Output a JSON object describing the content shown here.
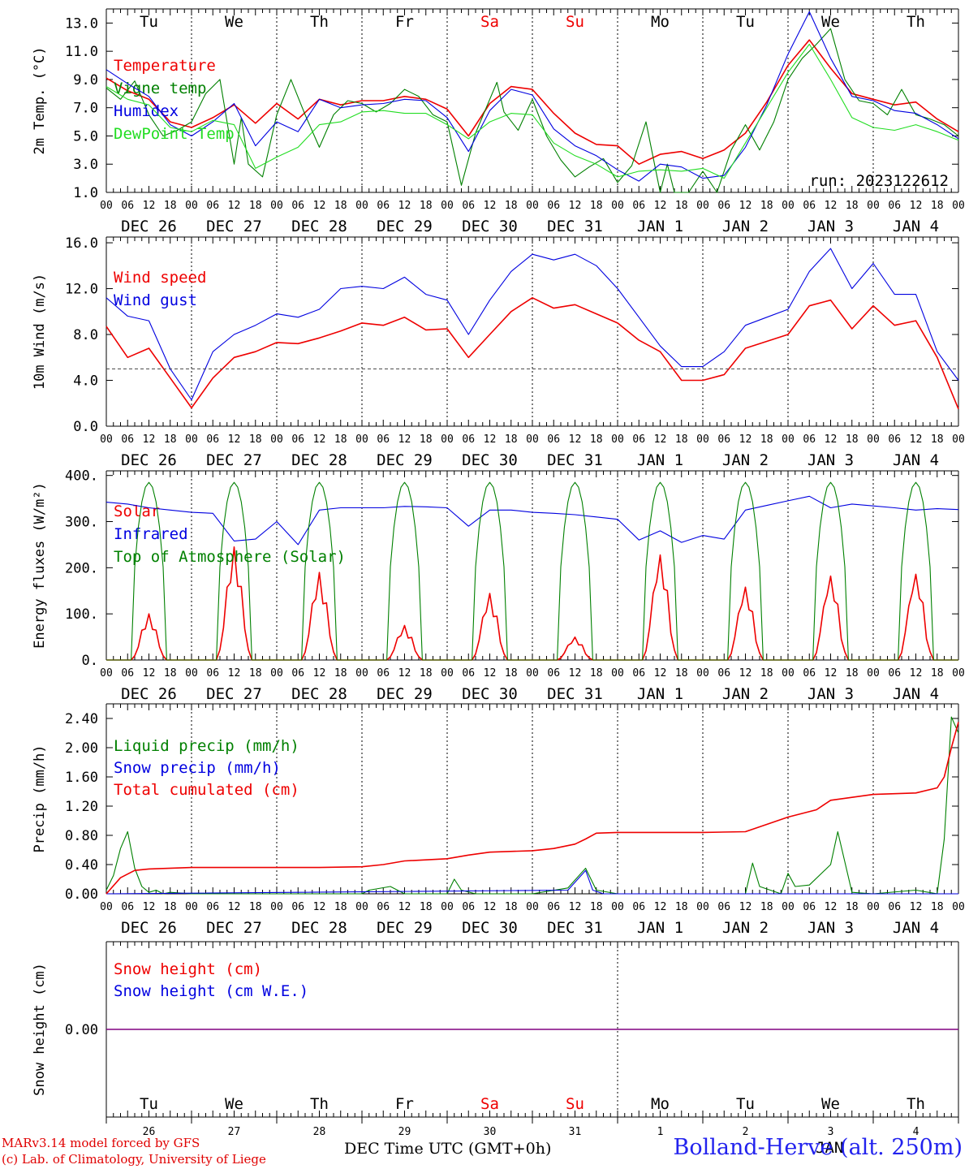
{
  "meta": {
    "run": "run: 2023122612",
    "station": "Bolland-Herve (alt. 250m)",
    "model_credit": "MARv3.14 model forced by GFS",
    "lab_credit": "(c) Lab. of Climatology, University of Liege",
    "time_axis_label": "DEC Time UTC (GMT+0h)",
    "jan_label": "JAN"
  },
  "colors": {
    "red": "#ee0000",
    "blue": "#0000e0",
    "green": "#008000",
    "lightgreen": "#22dd22",
    "purple": "#800080"
  },
  "days": {
    "names": [
      "Tu",
      "We",
      "Th",
      "Fr",
      "Sa",
      "Su",
      "Mo",
      "Tu",
      "We",
      "Th"
    ],
    "weekend": [
      false,
      false,
      false,
      false,
      true,
      true,
      false,
      false,
      false,
      false
    ],
    "dates": [
      "DEC 26",
      "DEC 27",
      "DEC 28",
      "DEC 29",
      "DEC 30",
      "DEC 31",
      "JAN  1",
      "JAN  2",
      "JAN  3",
      "JAN  4"
    ],
    "numbers": [
      "26",
      "27",
      "28",
      "29",
      "30",
      "31",
      "1",
      "2",
      "3",
      "4"
    ],
    "hour_ticks": [
      "00",
      "06",
      "12",
      "18"
    ],
    "last_tick": "00"
  },
  "chart_data": [
    {
      "type": "line",
      "ylabel": "2m Temp. (°C)",
      "ylim": [
        1.0,
        14.0
      ],
      "yticks": [
        "1.0",
        "3.0",
        "5.0",
        "7.0",
        "9.0",
        "11.0",
        "13.0"
      ],
      "x_unit": "hours since DEC 26 00 UTC",
      "series": [
        {
          "name": "Temperature",
          "color": "#ee0000",
          "x": [
            0,
            6,
            12,
            18,
            24,
            30,
            36,
            42,
            48,
            54,
            60,
            66,
            72,
            78,
            84,
            90,
            96,
            102,
            108,
            114,
            120,
            126,
            132,
            138,
            144,
            150,
            156,
            162,
            168,
            174,
            180,
            186,
            192,
            198,
            204,
            210,
            216,
            222,
            228,
            234,
            240
          ],
          "y": [
            9.1,
            8.2,
            7.6,
            6.0,
            5.6,
            6.3,
            7.2,
            5.9,
            7.3,
            6.2,
            7.6,
            7.2,
            7.5,
            7.5,
            7.8,
            7.6,
            6.9,
            5.0,
            7.3,
            8.5,
            8.3,
            6.6,
            5.2,
            4.4,
            4.3,
            3.0,
            3.7,
            3.9,
            3.4,
            4.0,
            5.2,
            7.4,
            10.0,
            11.8,
            9.8,
            8.0,
            7.6,
            7.2,
            7.4,
            6.2,
            5.3
          ]
        },
        {
          "name": "Vigne temp",
          "color": "#008000",
          "x": [
            0,
            4,
            8,
            12,
            16,
            20,
            24,
            28,
            32,
            36,
            38,
            40,
            44,
            48,
            52,
            56,
            60,
            64,
            68,
            72,
            76,
            80,
            84,
            88,
            92,
            96,
            100,
            104,
            108,
            110,
            112,
            116,
            120,
            124,
            128,
            132,
            136,
            140,
            144,
            148,
            152,
            156,
            158,
            160,
            164,
            168,
            172,
            176,
            180,
            184,
            188,
            192,
            196,
            200,
            204,
            208,
            212,
            216,
            220,
            224,
            228,
            232,
            236,
            240
          ],
          "y": [
            8.4,
            7.6,
            8.9,
            6.5,
            5.0,
            5.4,
            6.0,
            8.0,
            9.0,
            3.0,
            6.3,
            3.0,
            2.1,
            6.5,
            9.0,
            6.5,
            4.2,
            6.5,
            7.5,
            7.3,
            6.7,
            7.3,
            8.3,
            7.8,
            6.5,
            6.0,
            1.5,
            5.2,
            7.6,
            8.8,
            6.7,
            5.4,
            7.6,
            5.0,
            3.3,
            2.1,
            2.8,
            3.4,
            1.7,
            2.9,
            6.0,
            1.0,
            3.0,
            1.0,
            1.0,
            2.5,
            1.0,
            4.0,
            5.8,
            4.0,
            6.0,
            9.0,
            10.5,
            11.5,
            12.6,
            9.0,
            7.5,
            7.3,
            6.5,
            8.3,
            6.5,
            6.2,
            5.8,
            5.0
          ]
        },
        {
          "name": "Humidex",
          "color": "#0000e0",
          "x": [
            0,
            6,
            12,
            18,
            24,
            30,
            36,
            42,
            48,
            54,
            60,
            66,
            72,
            78,
            84,
            90,
            96,
            102,
            108,
            114,
            120,
            126,
            132,
            138,
            144,
            150,
            156,
            162,
            168,
            174,
            180,
            186,
            192,
            198,
            204,
            210,
            216,
            222,
            228,
            234,
            240
          ],
          "y": [
            9.7,
            8.7,
            7.8,
            5.8,
            5.0,
            6.0,
            7.3,
            4.3,
            6.0,
            5.3,
            7.6,
            7.0,
            7.2,
            7.3,
            7.6,
            7.5,
            6.3,
            3.9,
            6.8,
            8.3,
            7.9,
            5.5,
            4.3,
            3.6,
            2.6,
            1.8,
            3.0,
            2.8,
            2.0,
            2.2,
            4.2,
            7.2,
            10.8,
            13.8,
            10.5,
            7.8,
            7.5,
            6.8,
            6.6,
            5.8,
            4.8
          ]
        },
        {
          "name": "DewPoint Temp",
          "color": "#22dd22",
          "x": [
            0,
            6,
            12,
            18,
            24,
            30,
            36,
            42,
            48,
            54,
            60,
            66,
            72,
            78,
            84,
            90,
            96,
            102,
            108,
            114,
            120,
            126,
            132,
            138,
            144,
            150,
            156,
            162,
            168,
            174,
            180,
            186,
            192,
            198,
            204,
            210,
            216,
            222,
            228,
            234,
            240
          ],
          "y": [
            8.5,
            7.6,
            7.2,
            5.6,
            5.3,
            6.1,
            5.8,
            2.7,
            3.5,
            4.2,
            5.8,
            6.0,
            6.7,
            6.8,
            6.6,
            6.6,
            5.8,
            4.8,
            6.0,
            6.6,
            6.5,
            4.5,
            3.6,
            3.0,
            2.1,
            2.5,
            2.6,
            2.5,
            2.7,
            2.0,
            4.5,
            7.0,
            9.5,
            11.5,
            9.0,
            6.3,
            5.6,
            5.4,
            5.8,
            5.3,
            4.7
          ]
        }
      ],
      "legend_placement": "upper-left"
    },
    {
      "type": "line",
      "ylabel": "10m Wind (m/s)",
      "ylim": [
        0.0,
        16.0
      ],
      "yticks": [
        "0.0",
        "4.0",
        "8.0",
        "12.0",
        "16.0"
      ],
      "reference_line": 5.0,
      "series": [
        {
          "name": "Wind speed",
          "color": "#ee0000",
          "x": [
            0,
            6,
            12,
            18,
            24,
            30,
            36,
            42,
            48,
            54,
            60,
            66,
            72,
            78,
            84,
            90,
            96,
            102,
            108,
            114,
            120,
            126,
            132,
            138,
            144,
            150,
            156,
            162,
            168,
            174,
            180,
            186,
            192,
            198,
            204,
            210,
            216,
            222,
            228,
            234,
            240
          ],
          "y": [
            8.7,
            6.0,
            6.8,
            4.2,
            1.6,
            4.2,
            6.0,
            6.5,
            7.3,
            7.2,
            7.7,
            8.3,
            9.0,
            8.8,
            9.5,
            8.4,
            8.5,
            6.0,
            8.0,
            10.0,
            11.2,
            10.3,
            10.6,
            9.8,
            9.0,
            7.5,
            6.5,
            4.0,
            4.0,
            4.5,
            6.8,
            7.4,
            8.0,
            10.5,
            11.0,
            8.5,
            10.5,
            8.8,
            9.2,
            6.0,
            1.5
          ]
        },
        {
          "name": "Wind gust",
          "color": "#0000e0",
          "x": [
            0,
            6,
            12,
            18,
            24,
            30,
            36,
            42,
            48,
            54,
            60,
            66,
            72,
            78,
            84,
            90,
            96,
            102,
            108,
            114,
            120,
            126,
            132,
            138,
            144,
            150,
            156,
            162,
            168,
            174,
            180,
            186,
            192,
            198,
            204,
            210,
            216,
            222,
            228,
            234,
            240
          ],
          "y": [
            11.2,
            9.6,
            9.2,
            5.0,
            2.3,
            6.5,
            8.0,
            8.8,
            9.8,
            9.5,
            10.2,
            12.0,
            12.2,
            12.0,
            13.0,
            11.5,
            11.0,
            8.0,
            11.0,
            13.5,
            15.0,
            14.5,
            15.0,
            14.0,
            12.0,
            9.5,
            7.0,
            5.2,
            5.2,
            6.5,
            8.8,
            9.5,
            10.2,
            13.5,
            15.5,
            12.0,
            14.2,
            11.5,
            11.5,
            6.5,
            4.0
          ]
        }
      ],
      "legend_placement": "upper-left"
    },
    {
      "type": "line",
      "ylabel": "Energy fluxes (W/m²)",
      "ylim": [
        0,
        400
      ],
      "yticks": [
        "0.",
        "100.",
        "200.",
        "300.",
        "400."
      ],
      "series": [
        {
          "name": "Solar",
          "color": "#ee0000",
          "peaks": [
            100,
            245,
            190,
            75,
            145,
            50,
            230,
            160,
            185,
            190
          ]
        },
        {
          "name": "Infrared",
          "color": "#0000e0",
          "x": [
            0,
            6,
            12,
            18,
            24,
            30,
            36,
            42,
            48,
            54,
            60,
            66,
            72,
            78,
            84,
            90,
            96,
            102,
            108,
            114,
            120,
            126,
            132,
            138,
            144,
            150,
            156,
            162,
            168,
            174,
            180,
            186,
            192,
            198,
            204,
            210,
            216,
            222,
            228,
            234,
            240
          ],
          "y": [
            342,
            338,
            330,
            325,
            320,
            318,
            258,
            262,
            300,
            250,
            325,
            330,
            330,
            330,
            333,
            332,
            330,
            290,
            325,
            325,
            320,
            318,
            315,
            310,
            305,
            260,
            280,
            255,
            270,
            262,
            325,
            335,
            345,
            355,
            330,
            338,
            334,
            330,
            325,
            328,
            326
          ]
        },
        {
          "name": "Top of Atmosphere (Solar)",
          "color": "#008000",
          "peak": 385
        }
      ],
      "legend_placement": "upper-left"
    },
    {
      "type": "line",
      "ylabel": "Precip (mm/h)",
      "ylim": [
        0.0,
        2.6
      ],
      "yticks": [
        "0.00",
        "0.40",
        "0.80",
        "1.20",
        "1.60",
        "2.00",
        "2.40"
      ],
      "series": [
        {
          "name": "Liquid precip (mm/h)",
          "color": "#008000",
          "x": [
            0,
            2,
            4,
            6,
            8,
            10,
            12,
            14,
            16,
            18,
            24,
            48,
            72,
            74,
            80,
            84,
            96,
            98,
            100,
            104,
            120,
            130,
            135,
            138,
            144,
            168,
            180,
            182,
            184,
            190,
            192,
            194,
            198,
            204,
            206,
            210,
            216,
            228,
            234,
            236,
            238,
            240
          ],
          "y": [
            0.05,
            0.25,
            0.62,
            0.85,
            0.35,
            0.1,
            0.02,
            0.05,
            0.0,
            0.02,
            0.0,
            0.0,
            0.0,
            0.05,
            0.1,
            0.0,
            0.0,
            0.2,
            0.05,
            0.0,
            0.0,
            0.08,
            0.35,
            0.05,
            0.0,
            0.0,
            0.0,
            0.42,
            0.1,
            0.0,
            0.28,
            0.1,
            0.12,
            0.4,
            0.85,
            0.02,
            0.0,
            0.05,
            0.0,
            0.75,
            2.42,
            2.2
          ]
        },
        {
          "name": "Snow precip (mm/h)",
          "color": "#0000e0",
          "x": [
            0,
            130,
            135,
            137,
            140,
            240
          ],
          "y": [
            0.0,
            0.05,
            0.32,
            0.05,
            0.0,
            0.0
          ]
        },
        {
          "name": "Total cumulated (cm)",
          "color": "#ee0000",
          "x": [
            0,
            4,
            8,
            12,
            24,
            48,
            60,
            72,
            78,
            84,
            96,
            102,
            108,
            120,
            126,
            132,
            135,
            138,
            144,
            168,
            180,
            186,
            192,
            200,
            204,
            210,
            216,
            228,
            234,
            236,
            238,
            240
          ],
          "y": [
            0.0,
            0.22,
            0.32,
            0.34,
            0.36,
            0.36,
            0.36,
            0.37,
            0.4,
            0.45,
            0.48,
            0.53,
            0.57,
            0.59,
            0.62,
            0.68,
            0.75,
            0.83,
            0.84,
            0.84,
            0.85,
            0.95,
            1.05,
            1.15,
            1.28,
            1.32,
            1.36,
            1.38,
            1.45,
            1.6,
            2.0,
            2.35
          ]
        }
      ],
      "legend_placement": "upper-left"
    },
    {
      "type": "line",
      "ylabel": "Snow height (cm)",
      "yticks": [
        "0.00"
      ],
      "series": [
        {
          "name": "Snow height (cm)",
          "color": "#ee0000",
          "x": [
            0,
            240
          ],
          "y": [
            0.0,
            0.0
          ]
        },
        {
          "name": "Snow height (cm W.E.)",
          "color": "#0000e0",
          "x": [
            0,
            240
          ],
          "y": [
            0.0,
            0.0
          ]
        }
      ],
      "legend_placement": "upper-left"
    }
  ]
}
